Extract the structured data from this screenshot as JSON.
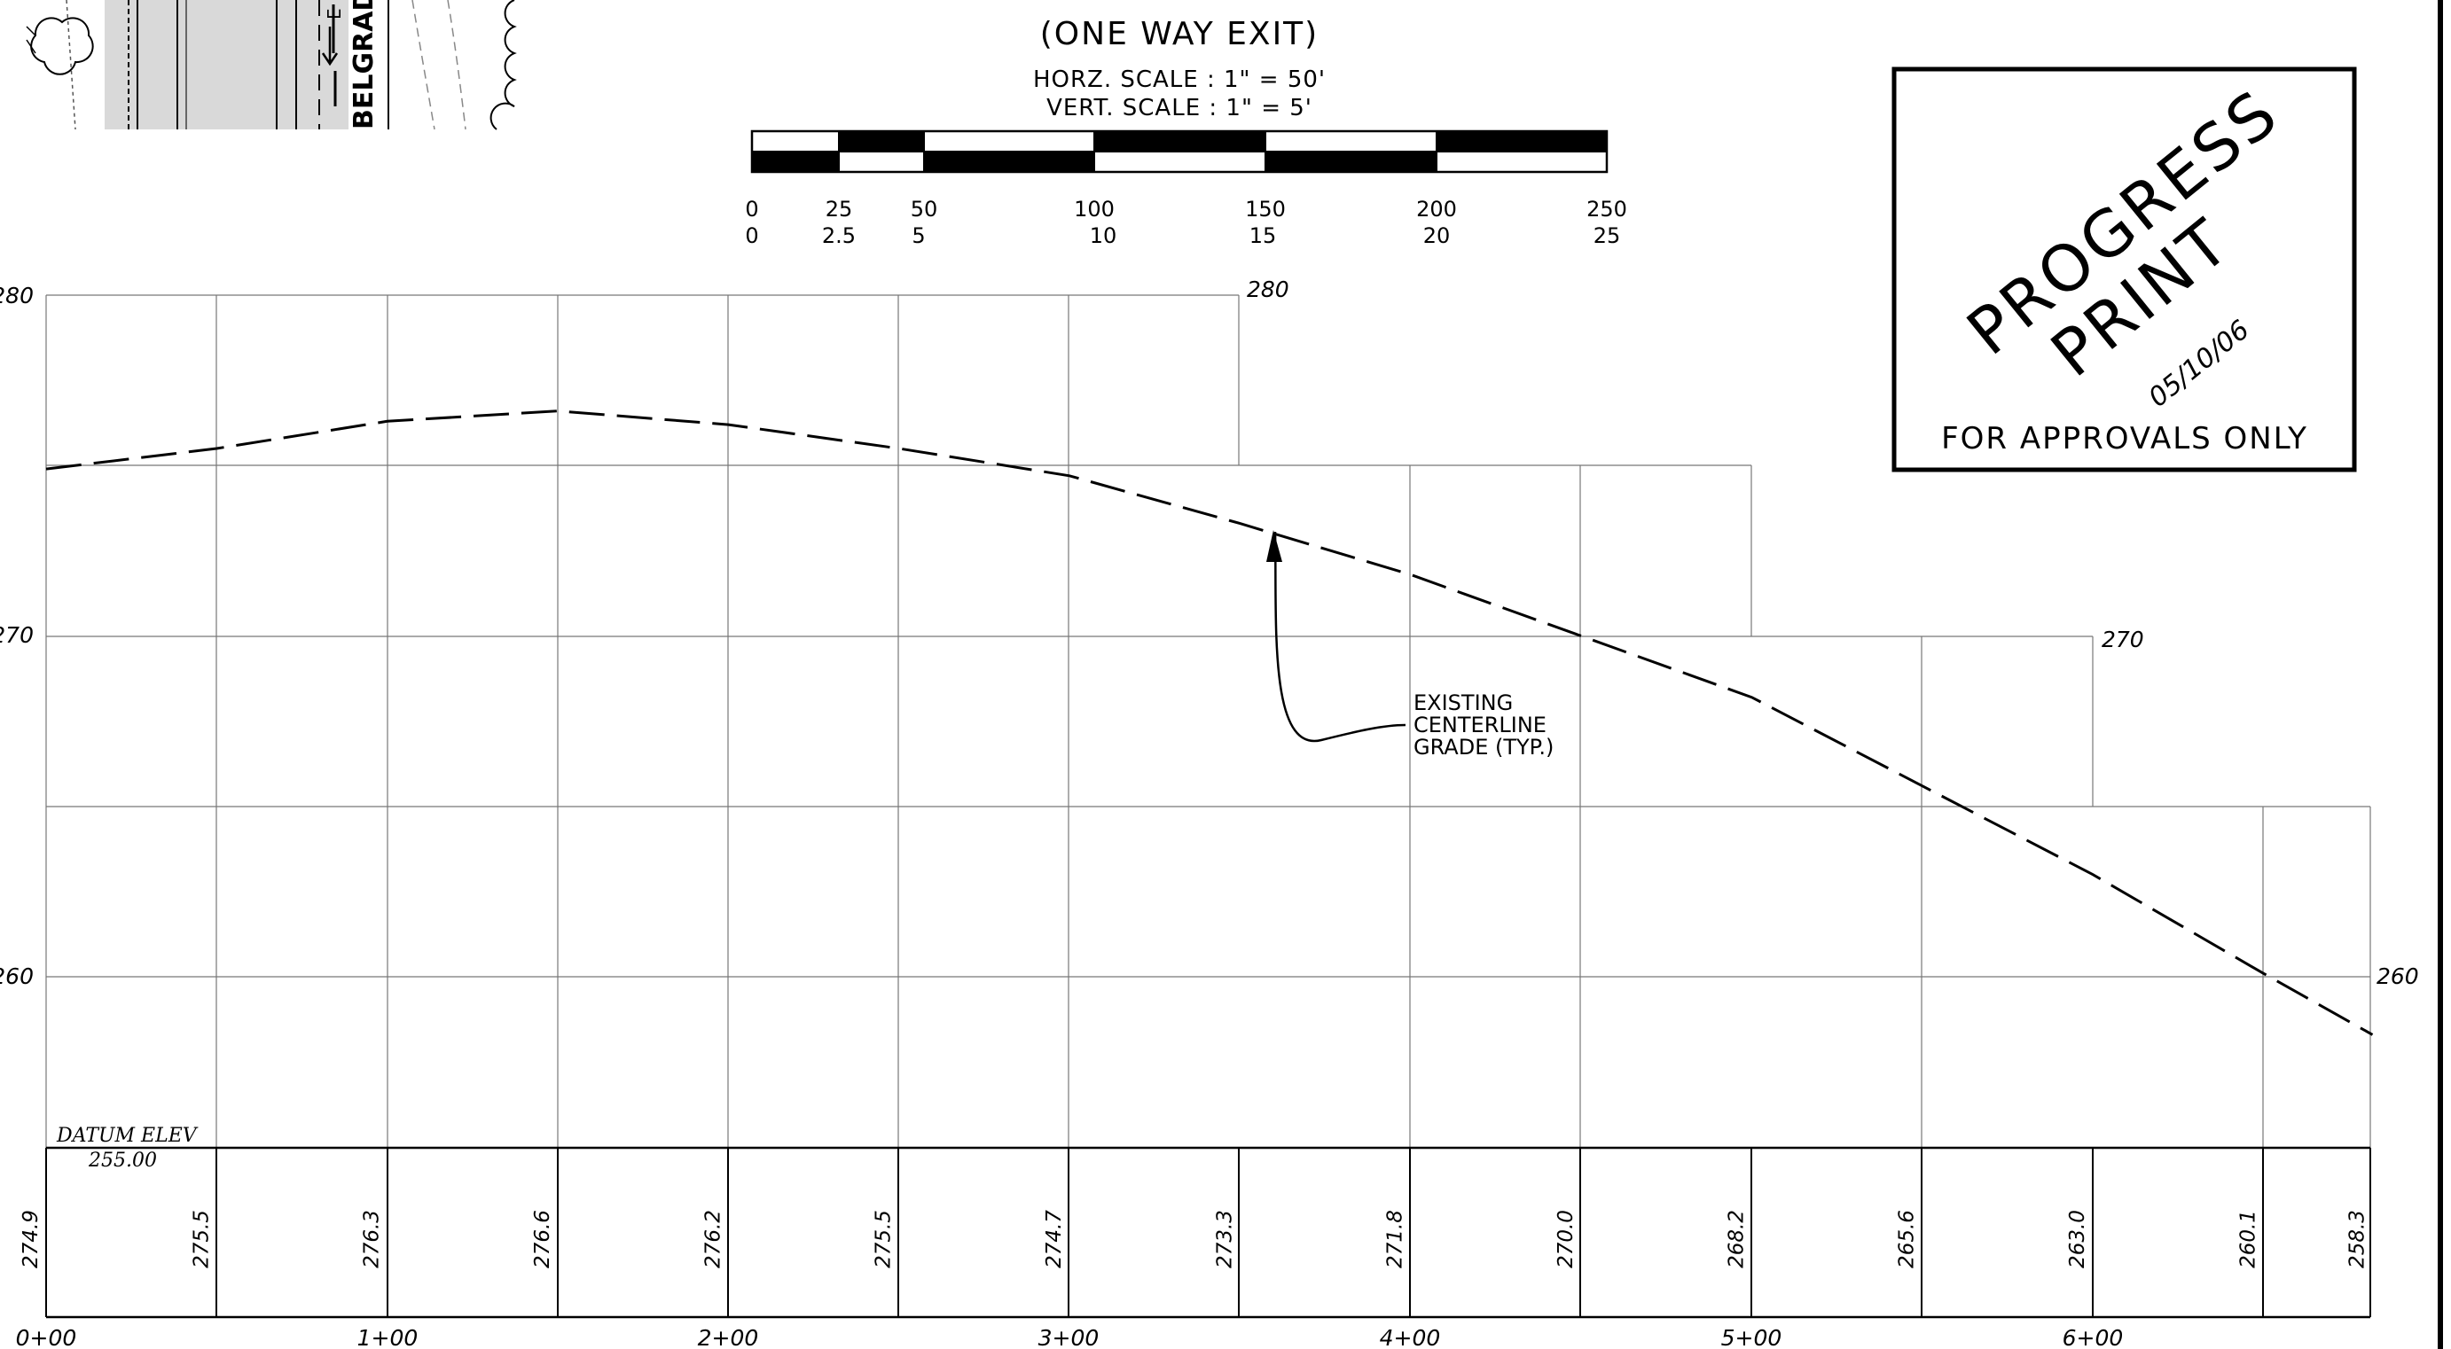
{
  "sheet": {
    "title": "(ONE WAY EXIT)",
    "horz_scale": "HORZ. SCALE : 1\" = 50'",
    "vert_scale": "VERT. SCALE : 1\" = 5'",
    "scale_bar": {
      "horz_labels": [
        "0",
        "25",
        "50",
        "100",
        "150",
        "200",
        "250"
      ],
      "vert_labels": [
        "0",
        "2.5",
        "5",
        "10",
        "15",
        "20",
        "25"
      ]
    },
    "plan_inset": {
      "street_label": "BELGRAD",
      "marker": "E"
    }
  },
  "stamp": {
    "line1": "PROGRESS",
    "line2": "PRINT",
    "date": "05/10/06",
    "footer": "FOR APPROVALS ONLY"
  },
  "profile": {
    "elev_labels": [
      {
        "value": "280",
        "side": "left"
      },
      {
        "value": "280",
        "side": "right"
      },
      {
        "value": "270",
        "side": "left"
      },
      {
        "value": "270",
        "side": "right"
      },
      {
        "value": "260",
        "side": "left"
      },
      {
        "value": "260",
        "side": "right"
      }
    ],
    "station_labels": [
      "0+00",
      "1+00",
      "2+00",
      "3+00",
      "4+00",
      "5+00",
      "6+00"
    ],
    "datum_title": "DATUM ELEV",
    "datum_value": "255.00",
    "annotation": [
      "EXISTING",
      "CENTERLINE",
      "GRADE (TYP.)"
    ]
  },
  "chart_data": {
    "type": "line",
    "title": "(ONE WAY EXIT)",
    "xlabel": "",
    "ylabel": "",
    "x_unit": "station (ft)",
    "ylim": [
      255,
      280
    ],
    "xlim": [
      0,
      682
    ],
    "series": [
      {
        "style": "dashed",
        "x": [
          0,
          50,
          100,
          150,
          200,
          250,
          300,
          350,
          400,
          450,
          500,
          550,
          600,
          650,
          682
        ],
        "y": [
          274.9,
          275.5,
          276.3,
          276.6,
          276.2,
          275.5,
          274.7,
          273.3,
          271.8,
          270.0,
          268.2,
          265.6,
          263.0,
          260.1,
          258.3
        ]
      }
    ],
    "cell_values": [
      "274.9",
      "275.5",
      "276.3",
      "276.6",
      "276.2",
      "275.5",
      "274.7",
      "273.3",
      "271.8",
      "270.0",
      "268.2",
      "265.6",
      "263.0",
      "260.1",
      "258.3"
    ]
  }
}
